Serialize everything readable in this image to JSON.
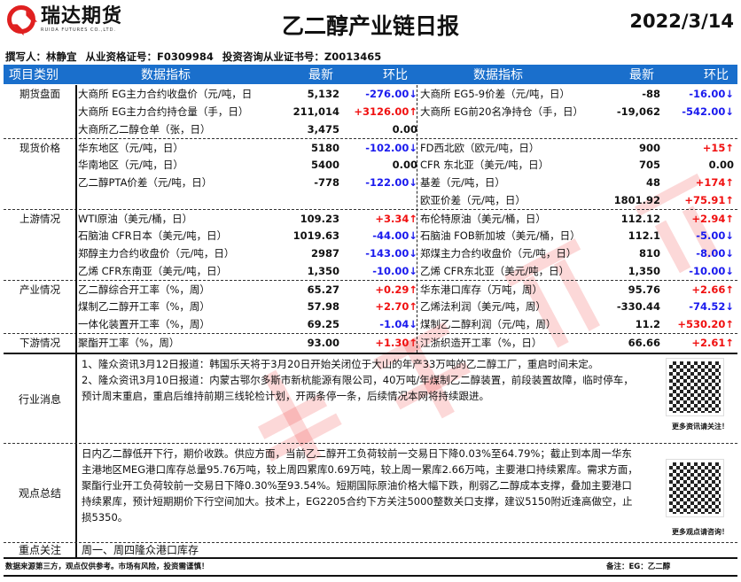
{
  "header": {
    "logo_cn": "瑞达期货",
    "logo_en": "RUIDA FUTURES CO.,LTD.",
    "title": "乙二醇产业链日报",
    "date": "2022/3/14",
    "author": "撰写人：林静宜",
    "license": "从业资格证号：F0309984",
    "invest_license": "投资咨询从业证书号：Z0013465"
  },
  "columns": [
    "项目类别",
    "数据指标",
    "最新",
    "环比",
    "数据指标",
    "最新",
    "环比"
  ],
  "colors": {
    "header_bg": "#1a6fcc",
    "up": "#f01010",
    "down": "#1a1aee"
  },
  "sections": [
    {
      "category": "期货盘面",
      "rows": [
        [
          "大商所 EG主力合约收盘价（元/吨，日",
          "5,132",
          "-276.00",
          "down",
          "大商所 EG5-9价差（元/吨，日）",
          "-88",
          "-16.00",
          "down"
        ],
        [
          "大商所 EG主力合约持仓量（手，日）",
          "211,014",
          "+3126.00",
          "up",
          "大商所 EG前20名净持仓（手，日）",
          "-19,062",
          "-542.00",
          "down"
        ],
        [
          "大商所乙二醇仓单（张，日）",
          "3,475",
          "0.00",
          "flat",
          "",
          "",
          "",
          ""
        ]
      ]
    },
    {
      "category": "现货价格",
      "rows": [
        [
          "华东地区（元/吨，日）",
          "5180",
          "-102.00",
          "down",
          "FD西北欧（欧元/吨，日）",
          "900",
          "+15",
          "up"
        ],
        [
          "华南地区（元/吨，日）",
          "5400",
          "0.00",
          "flat",
          "CFR 东北亚（美元/吨，日）",
          "705",
          "0.00",
          "flat"
        ],
        [
          "乙二醇PTA价差（元/吨，日）",
          "-778",
          "-122.00",
          "down",
          "基差（元/吨，日）",
          "48",
          "+174",
          "up"
        ],
        [
          "",
          "",
          "",
          "",
          "欧亚价差（元/吨，日）",
          "1801.92",
          "+75.91",
          "up"
        ]
      ]
    },
    {
      "category": "上游情况",
      "rows": [
        [
          "WTI原油（美元/桶，日）",
          "109.23",
          "+3.34",
          "up",
          "布伦特原油（美元/桶，日）",
          "112.12",
          "+2.94",
          "up"
        ],
        [
          "石脑油 CFR日本（美元/吨，日）",
          "1019.63",
          "-44.00",
          "down",
          "石脑油 FOB新加坡（美元/桶，日）",
          "112.1",
          "-5.00",
          "down"
        ],
        [
          "郑醇主力合约收盘价（元/吨，日）",
          "2987",
          "-143.00",
          "down",
          "郑煤主力合约收盘价（元/吨，日）",
          "810",
          "-8.00",
          "down"
        ],
        [
          "乙烯 CFR东南亚（美元/吨，日）",
          "1,350",
          "-10.00",
          "down",
          "乙烯 CFR东北亚（美元/吨，日）",
          "1,350",
          "-10.00",
          "down"
        ]
      ]
    },
    {
      "category": "产业情况",
      "rows": [
        [
          "乙二醇综合开工率（%，周）",
          "65.27",
          "+0.29",
          "up",
          "华东港口库存（万吨，周）",
          "95.76",
          "+2.66",
          "up"
        ],
        [
          "煤制乙二醇开工率（%，周）",
          "57.98",
          "+2.70",
          "up",
          "乙烯法利润（美元/吨，周）",
          "-330.44",
          "-74.52",
          "down"
        ],
        [
          "一体化装置开工率（%，周）",
          "69.25",
          "-1.04",
          "down",
          "煤制乙二醇利润（元/吨，周）",
          "11.2",
          "+530.20",
          "up"
        ]
      ]
    },
    {
      "category": "下游情况",
      "rows": [
        [
          "聚酯开工率（%，周）",
          "93.00",
          "+1.30",
          "up",
          "江浙织造开工率（%，日）",
          "66.66",
          "+2.61",
          "up"
        ]
      ]
    }
  ],
  "news": {
    "label": "行业消息",
    "lines": [
      "1、隆众资讯3月12日报道：韩国乐天将于3月20日开始关闭位于大山的年产33万吨的乙二醇工厂，重启时间未定。",
      "2、隆众资讯3月10日报道：内蒙古鄂尔多斯市新杭能源有限公司，40万吨/年煤制乙二醇装置，前段装置故障，临时停车，",
      "预计周末重启，重启后维持前期三线轮检计划，开两条停一条，后续情况本网将持续跟进。"
    ],
    "qr_caption": "更多资讯请关注！"
  },
  "view": {
    "label": "观点总结",
    "lines": [
      "日内乙二醇低开下行，期价收跌。供应方面，当前乙二醇开工负荷较前一交易日下降0.03%至64.79%；截止到本周一华东",
      "主港地区MEG港口库存总量95.76万吨，较上周四累库0.69万吨，较上周一累库2.66万吨，主要港口持续累库。需求方面，",
      "聚酯行业开工负荷较前一交易日下降0.30%至93.54%。短期国际原油价格大幅下跌，削弱乙二醇成本支撑，叠加主要港口",
      "持续累库，预计短期期价下行空间加大。技术上，EG2205合约下方关注5000整数关口支撑，建议5150附近逢高做空，止",
      "损5350。"
    ],
    "qr_caption": "更多观点请咨询！"
  },
  "focus": {
    "label": "重点关注",
    "text": "周一、周四隆众港口库存"
  },
  "footer": {
    "disclaimer": "数据来源第三方，观点仅供参考。市场有风险，投资需谨慎！",
    "note": "备注：EG：乙二醇"
  },
  "watermark": "瑞达研究"
}
